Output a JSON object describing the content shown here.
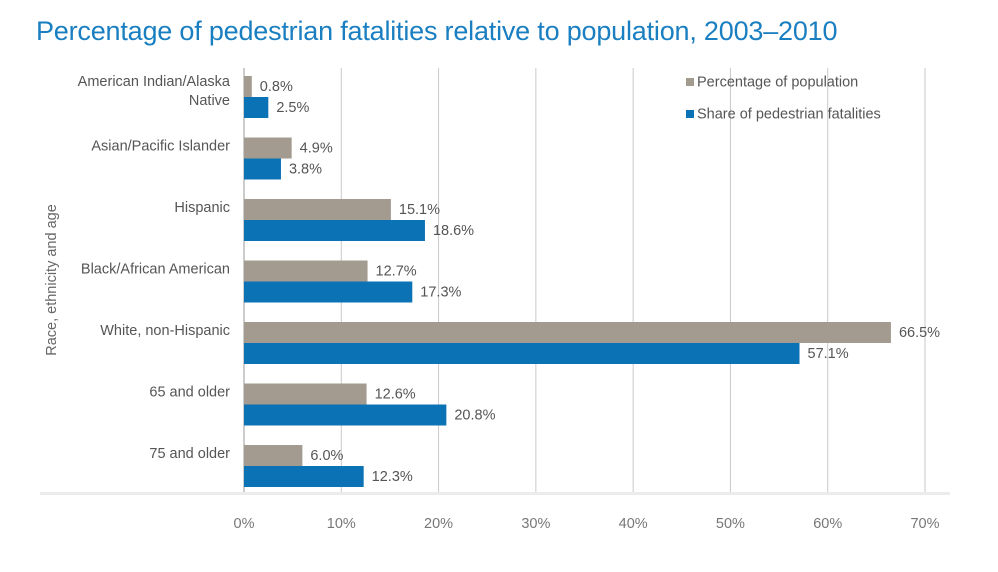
{
  "chart_data": {
    "type": "bar",
    "orientation": "horizontal",
    "title": "Percentage of pedestrian fatalities relative to population, 2003–2010",
    "ylabel": "Race, ethnicity and age",
    "xlabel": "",
    "categories": [
      [
        "American Indian/Alaska",
        "Native"
      ],
      [
        "Asian/Pacific Islander"
      ],
      [
        "Hispanic"
      ],
      [
        "Black/African American"
      ],
      [
        "White, non-Hispanic"
      ],
      [
        "65 and older"
      ],
      [
        "75 and older"
      ]
    ],
    "series": [
      {
        "name": "Percentage of population",
        "color": "#a39b8f",
        "values": [
          0.8,
          4.9,
          15.1,
          12.7,
          66.5,
          12.6,
          6.0
        ],
        "labels": [
          "0.8%",
          "4.9%",
          "15.1%",
          "12.7%",
          "66.5%",
          "12.6%",
          "6.0%"
        ]
      },
      {
        "name": "Share of pedestrian fatalities",
        "color": "#0b72b6",
        "values": [
          2.5,
          3.8,
          18.6,
          17.3,
          57.1,
          20.8,
          12.3
        ],
        "labels": [
          "2.5%",
          "3.8%",
          "18.6%",
          "17.3%",
          "57.1%",
          "20.8%",
          "12.3%"
        ]
      }
    ],
    "xlim": [
      0,
      70
    ],
    "xticks": [
      0,
      10,
      20,
      30,
      40,
      50,
      60,
      70
    ],
    "xtick_labels": [
      "0%",
      "10%",
      "20%",
      "30%",
      "40%",
      "50%",
      "60%",
      "70%"
    ],
    "grid": "vertical",
    "legend_position": "top-right"
  }
}
